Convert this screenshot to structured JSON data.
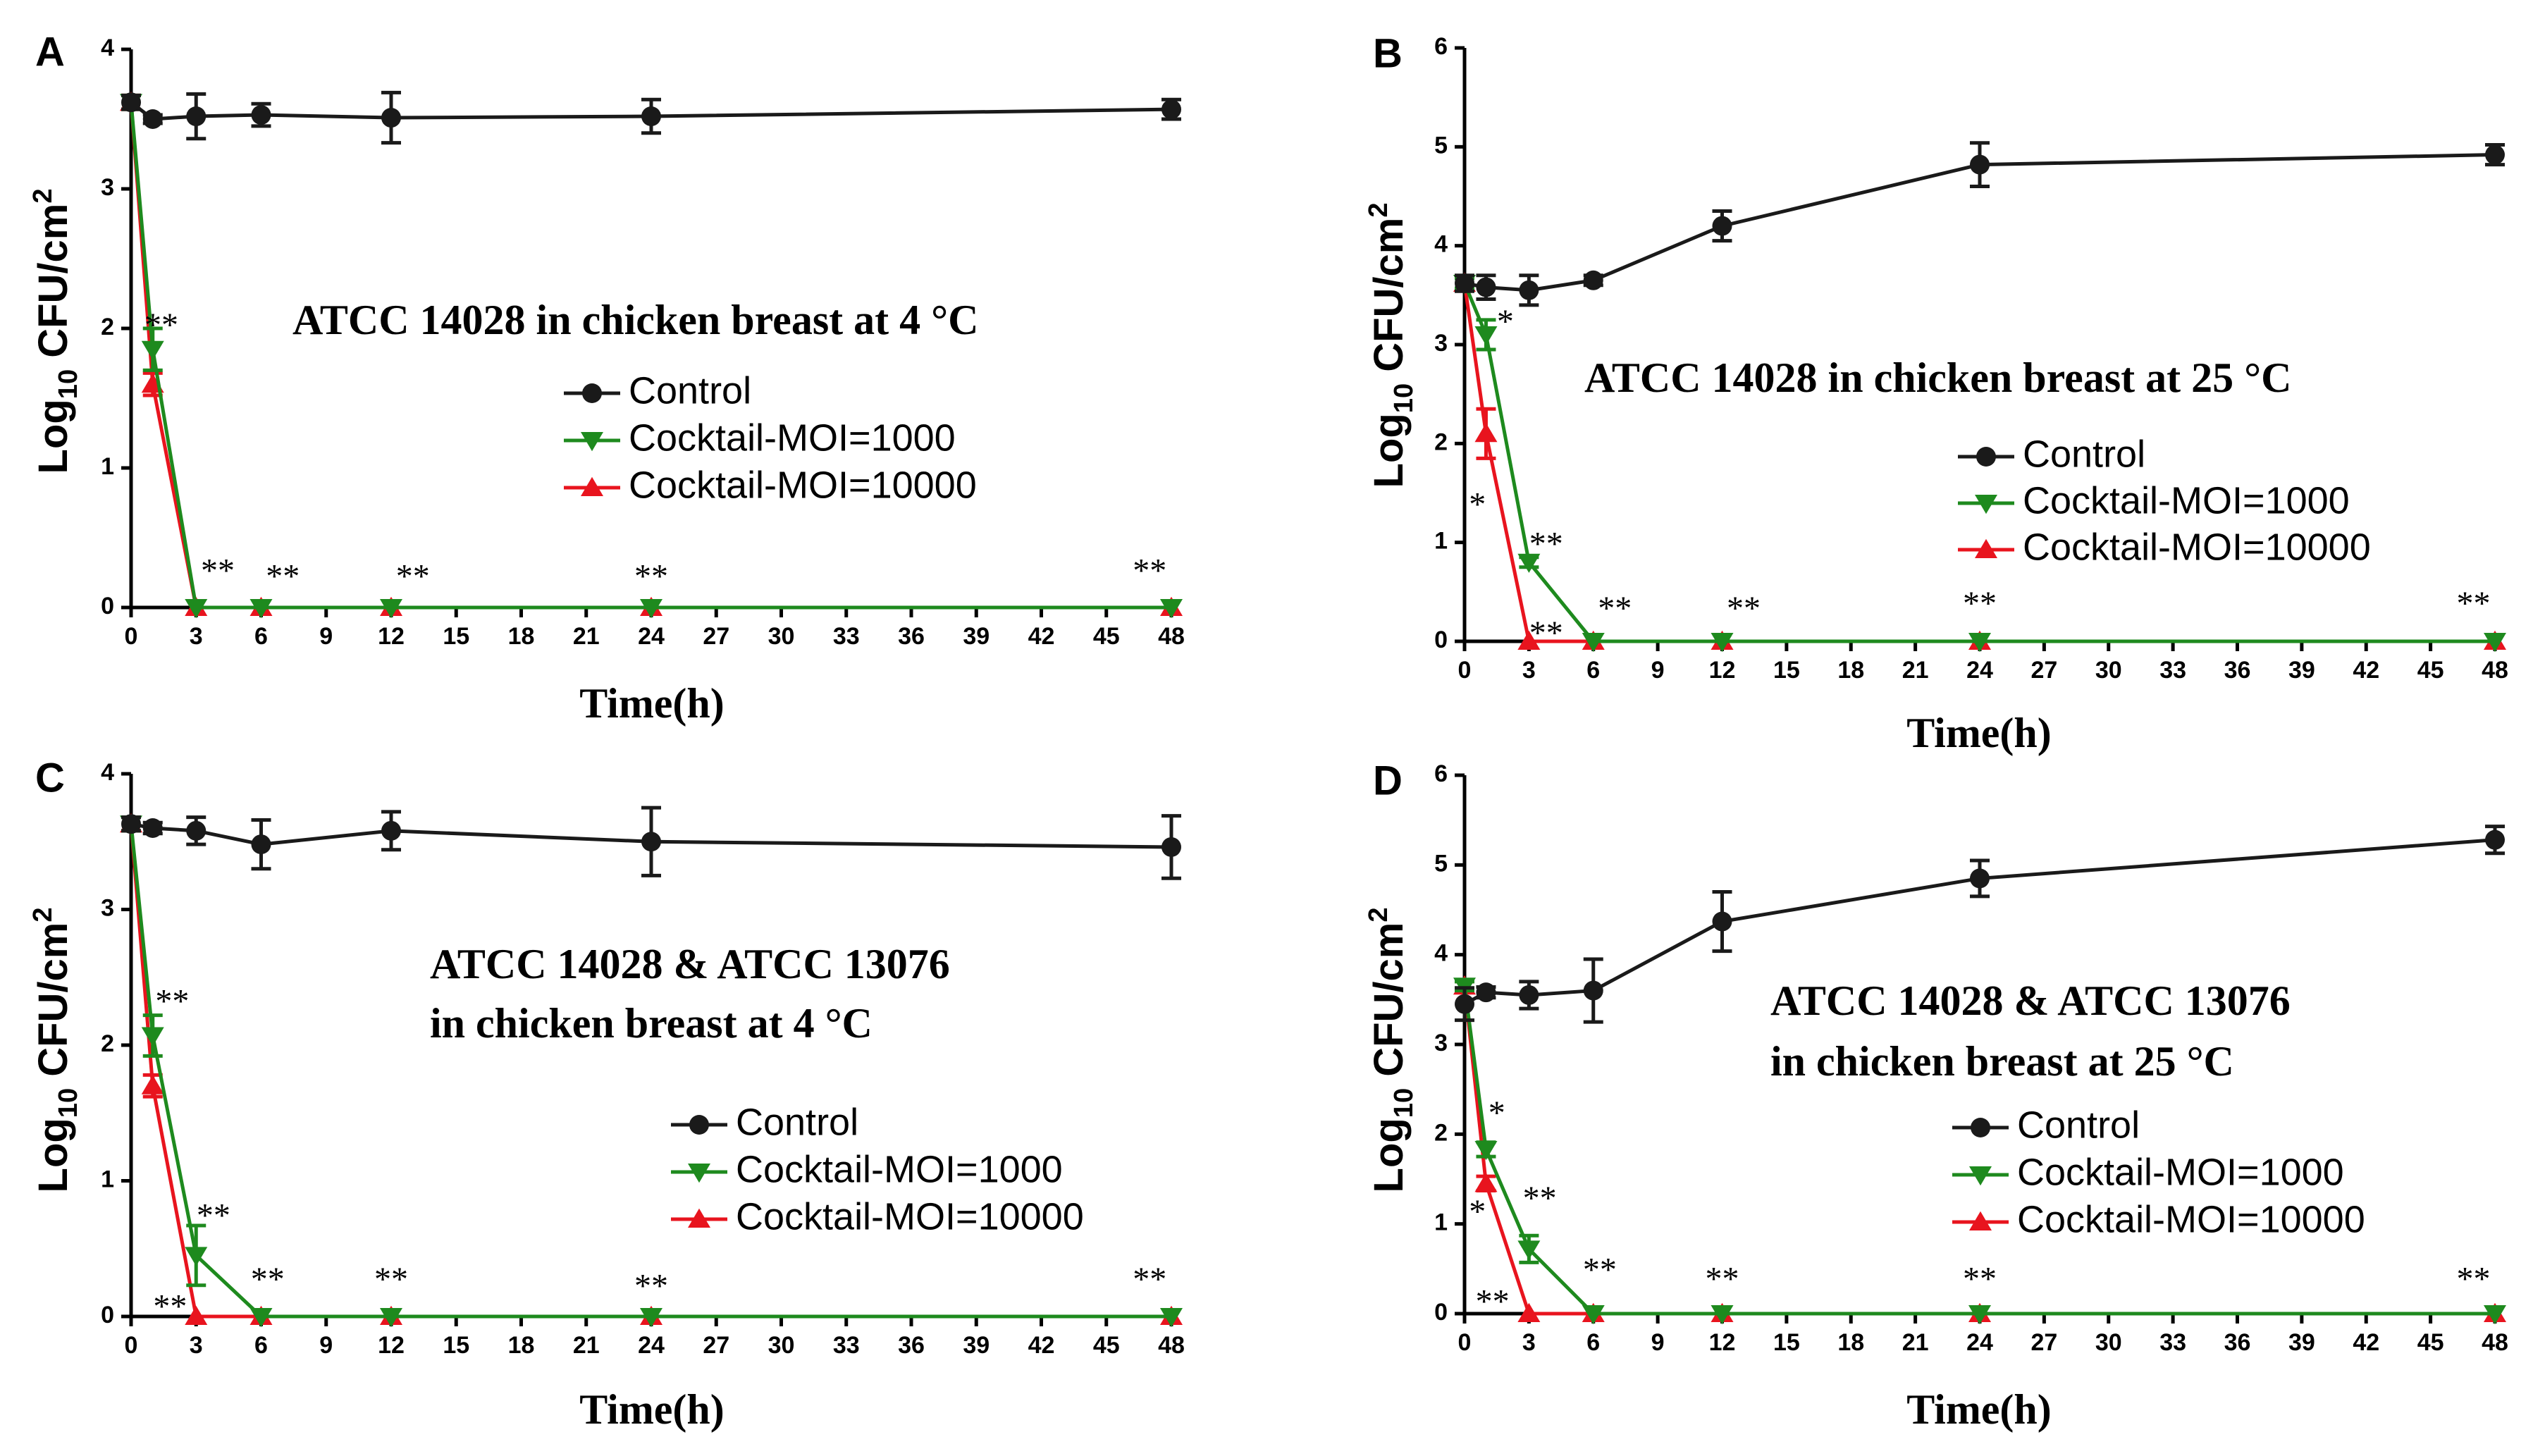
{
  "colors": {
    "control": "#1a1a1a",
    "moi1000": "#1e8a1e",
    "moi10000": "#e8141e",
    "axis": "#000000"
  },
  "chart_data": [
    {
      "panel": "A",
      "type": "line",
      "title": "ATCC 14028 in chicken breast at 4 °C",
      "xlabel": "Time(h)",
      "ylabel_prefix": "Log",
      "ylabel_sub": "10",
      "ylabel_main": " CFU/cm",
      "ylabel_sup": "2",
      "xlim": [
        0,
        48
      ],
      "ylim": [
        0,
        4
      ],
      "xticks": [
        0,
        3,
        6,
        9,
        12,
        15,
        18,
        21,
        24,
        27,
        30,
        33,
        36,
        39,
        42,
        45,
        48
      ],
      "yticks": [
        0,
        1,
        2,
        3,
        4
      ],
      "series": [
        {
          "name": "Control",
          "marker": "circle",
          "x": [
            0,
            1,
            3,
            6,
            12,
            24,
            48
          ],
          "y": [
            3.62,
            3.5,
            3.52,
            3.53,
            3.51,
            3.52,
            3.57
          ],
          "err": [
            0.05,
            0.03,
            0.16,
            0.08,
            0.18,
            0.12,
            0.07
          ]
        },
        {
          "name": "Cocktail-MOI=1000",
          "marker": "triangle-down",
          "x": [
            0,
            1,
            3,
            6,
            12,
            24,
            48
          ],
          "y": [
            3.62,
            1.85,
            0,
            0,
            0,
            0,
            0
          ],
          "err": [
            0.05,
            0.15,
            0,
            0,
            0,
            0,
            0
          ]
        },
        {
          "name": "Cocktail-MOI=10000",
          "marker": "triangle-up",
          "x": [
            0,
            1,
            3,
            6,
            12,
            24,
            48
          ],
          "y": [
            3.62,
            1.6,
            0,
            0,
            0,
            0,
            0
          ],
          "err": [
            0.05,
            0.08,
            0,
            0,
            0,
            0,
            0
          ]
        }
      ],
      "annotations": [
        {
          "x": 1.4,
          "y": 2.0,
          "text": "**"
        },
        {
          "x": 4.0,
          "y": 0.24,
          "text": "**"
        },
        {
          "x": 7.0,
          "y": 0.2,
          "text": "**"
        },
        {
          "x": 13.0,
          "y": 0.2,
          "text": "**"
        },
        {
          "x": 24.0,
          "y": 0.2,
          "text": "**"
        },
        {
          "x": 47.0,
          "y": 0.24,
          "text": "**"
        }
      ],
      "legend": [
        "Control",
        "Cocktail-MOI=1000",
        "Cocktail-MOI=10000"
      ]
    },
    {
      "panel": "B",
      "type": "line",
      "title": "ATCC 14028 in chicken breast at 25 °C",
      "xlabel": "Time(h)",
      "ylabel_prefix": "Log",
      "ylabel_sub": "10",
      "ylabel_main": " CFU/cm",
      "ylabel_sup": "2",
      "xlim": [
        0,
        48
      ],
      "ylim": [
        0,
        6
      ],
      "xticks": [
        0,
        3,
        6,
        9,
        12,
        15,
        18,
        21,
        24,
        27,
        30,
        33,
        36,
        39,
        42,
        45,
        48
      ],
      "yticks": [
        0,
        1,
        2,
        3,
        4,
        5,
        6
      ],
      "series": [
        {
          "name": "Control",
          "marker": "circle",
          "x": [
            0,
            1,
            3,
            6,
            12,
            24,
            48
          ],
          "y": [
            3.62,
            3.58,
            3.55,
            3.65,
            4.2,
            4.82,
            4.92
          ],
          "err": [
            0.08,
            0.12,
            0.15,
            0.05,
            0.15,
            0.22,
            0.1
          ]
        },
        {
          "name": "Cocktail-MOI=1000",
          "marker": "triangle-down",
          "x": [
            0,
            1,
            3,
            6,
            12,
            24,
            48
          ],
          "y": [
            3.62,
            3.1,
            0.8,
            0,
            0,
            0,
            0
          ],
          "err": [
            0.05,
            0.15,
            0.05,
            0,
            0,
            0,
            0
          ]
        },
        {
          "name": "Cocktail-MOI=10000",
          "marker": "triangle-up",
          "x": [
            0,
            1,
            3,
            6,
            12,
            24,
            48
          ],
          "y": [
            3.62,
            2.1,
            0,
            0,
            0,
            0,
            0
          ],
          "err": [
            0.05,
            0.25,
            0,
            0,
            0,
            0,
            0
          ]
        }
      ],
      "annotations": [
        {
          "x": 1.9,
          "y": 3.2,
          "text": "*"
        },
        {
          "x": 0.6,
          "y": 1.35,
          "text": "*"
        },
        {
          "x": 3.8,
          "y": 0.95,
          "text": "**"
        },
        {
          "x": 3.8,
          "y": 0.05,
          "text": "**"
        },
        {
          "x": 7.0,
          "y": 0.3,
          "text": "**"
        },
        {
          "x": 13.0,
          "y": 0.3,
          "text": "**"
        },
        {
          "x": 24.0,
          "y": 0.35,
          "text": "**"
        },
        {
          "x": 47.0,
          "y": 0.35,
          "text": "**"
        }
      ],
      "legend": [
        "Control",
        "Cocktail-MOI=1000",
        "Cocktail-MOI=10000"
      ]
    },
    {
      "panel": "C",
      "type": "line",
      "title": "ATCC 14028 & ATCC 13076",
      "title2": "in chicken breast at 4 °C",
      "xlabel": "Time(h)",
      "ylabel_prefix": "Log",
      "ylabel_sub": "10",
      "ylabel_main": " CFU/cm",
      "ylabel_sup": "2",
      "xlim": [
        0,
        48
      ],
      "ylim": [
        0,
        4
      ],
      "xticks": [
        0,
        3,
        6,
        9,
        12,
        15,
        18,
        21,
        24,
        27,
        30,
        33,
        36,
        39,
        42,
        45,
        48
      ],
      "yticks": [
        0,
        1,
        2,
        3,
        4
      ],
      "series": [
        {
          "name": "Control",
          "marker": "circle",
          "x": [
            0,
            1,
            3,
            6,
            12,
            24,
            48
          ],
          "y": [
            3.63,
            3.6,
            3.58,
            3.48,
            3.58,
            3.5,
            3.46
          ],
          "err": [
            0.05,
            0.04,
            0.1,
            0.18,
            0.14,
            0.25,
            0.23
          ]
        },
        {
          "name": "Cocktail-MOI=1000",
          "marker": "triangle-down",
          "x": [
            0,
            1,
            3,
            6,
            12,
            24,
            48
          ],
          "y": [
            3.63,
            2.07,
            0.45,
            0,
            0,
            0,
            0
          ],
          "err": [
            0.05,
            0.15,
            0.22,
            0,
            0,
            0,
            0
          ]
        },
        {
          "name": "Cocktail-MOI=10000",
          "marker": "triangle-up",
          "x": [
            0,
            1,
            3,
            6,
            12,
            24,
            48
          ],
          "y": [
            3.63,
            1.7,
            0,
            0,
            0,
            0,
            0
          ],
          "err": [
            0.05,
            0.08,
            0,
            0,
            0,
            0,
            0
          ]
        }
      ],
      "annotations": [
        {
          "x": 1.9,
          "y": 2.3,
          "text": "**"
        },
        {
          "x": 1.8,
          "y": 0.05,
          "text": "**"
        },
        {
          "x": 3.8,
          "y": 0.72,
          "text": "**"
        },
        {
          "x": 6.3,
          "y": 0.25,
          "text": "**"
        },
        {
          "x": 12.0,
          "y": 0.25,
          "text": "**"
        },
        {
          "x": 24.0,
          "y": 0.2,
          "text": "**"
        },
        {
          "x": 47.0,
          "y": 0.25,
          "text": "**"
        }
      ],
      "legend": [
        "Control",
        "Cocktail-MOI=1000",
        "Cocktail-MOI=10000"
      ]
    },
    {
      "panel": "D",
      "type": "line",
      "title": "ATCC 14028 & ATCC 13076",
      "title2": " in chicken breast at 25 °C",
      "xlabel": "Time(h)",
      "ylabel_prefix": "Log",
      "ylabel_sub": "10",
      "ylabel_main": " CFU/cm",
      "ylabel_sup": "2",
      "xlim": [
        0,
        48
      ],
      "ylim": [
        0,
        6
      ],
      "xticks": [
        0,
        3,
        6,
        9,
        12,
        15,
        18,
        21,
        24,
        27,
        30,
        33,
        36,
        39,
        42,
        45,
        48
      ],
      "yticks": [
        0,
        1,
        2,
        3,
        4,
        5,
        6
      ],
      "series": [
        {
          "name": "Control",
          "marker": "circle",
          "x": [
            0,
            1,
            3,
            6,
            12,
            24,
            48
          ],
          "y": [
            3.45,
            3.58,
            3.55,
            3.6,
            4.37,
            4.85,
            5.28
          ],
          "err": [
            0.18,
            0.06,
            0.15,
            0.35,
            0.33,
            0.2,
            0.15
          ]
        },
        {
          "name": "Cocktail-MOI=1000",
          "marker": "triangle-down",
          "x": [
            0,
            1,
            3,
            6,
            12,
            24,
            48
          ],
          "y": [
            3.65,
            1.83,
            0.72,
            0,
            0,
            0,
            0
          ],
          "err": [
            0.05,
            0.08,
            0.15,
            0,
            0,
            0,
            0
          ]
        },
        {
          "name": "Cocktail-MOI=10000",
          "marker": "triangle-up",
          "x": [
            0,
            1,
            3,
            6,
            12,
            24,
            48
          ],
          "y": [
            3.65,
            1.45,
            0,
            0,
            0,
            0,
            0
          ],
          "err": [
            0.05,
            0.08,
            0,
            0,
            0,
            0,
            0
          ]
        }
      ],
      "annotations": [
        {
          "x": 1.5,
          "y": 2.2,
          "text": "*"
        },
        {
          "x": 0.6,
          "y": 1.1,
          "text": "*"
        },
        {
          "x": 3.5,
          "y": 1.25,
          "text": "**"
        },
        {
          "x": 1.3,
          "y": 0.1,
          "text": "**"
        },
        {
          "x": 6.3,
          "y": 0.45,
          "text": "**"
        },
        {
          "x": 12.0,
          "y": 0.35,
          "text": "**"
        },
        {
          "x": 24.0,
          "y": 0.35,
          "text": "**"
        },
        {
          "x": 47.0,
          "y": 0.35,
          "text": "**"
        }
      ],
      "legend": [
        "Control",
        "Cocktail-MOI=1000",
        "Cocktail-MOI=10000"
      ]
    }
  ]
}
